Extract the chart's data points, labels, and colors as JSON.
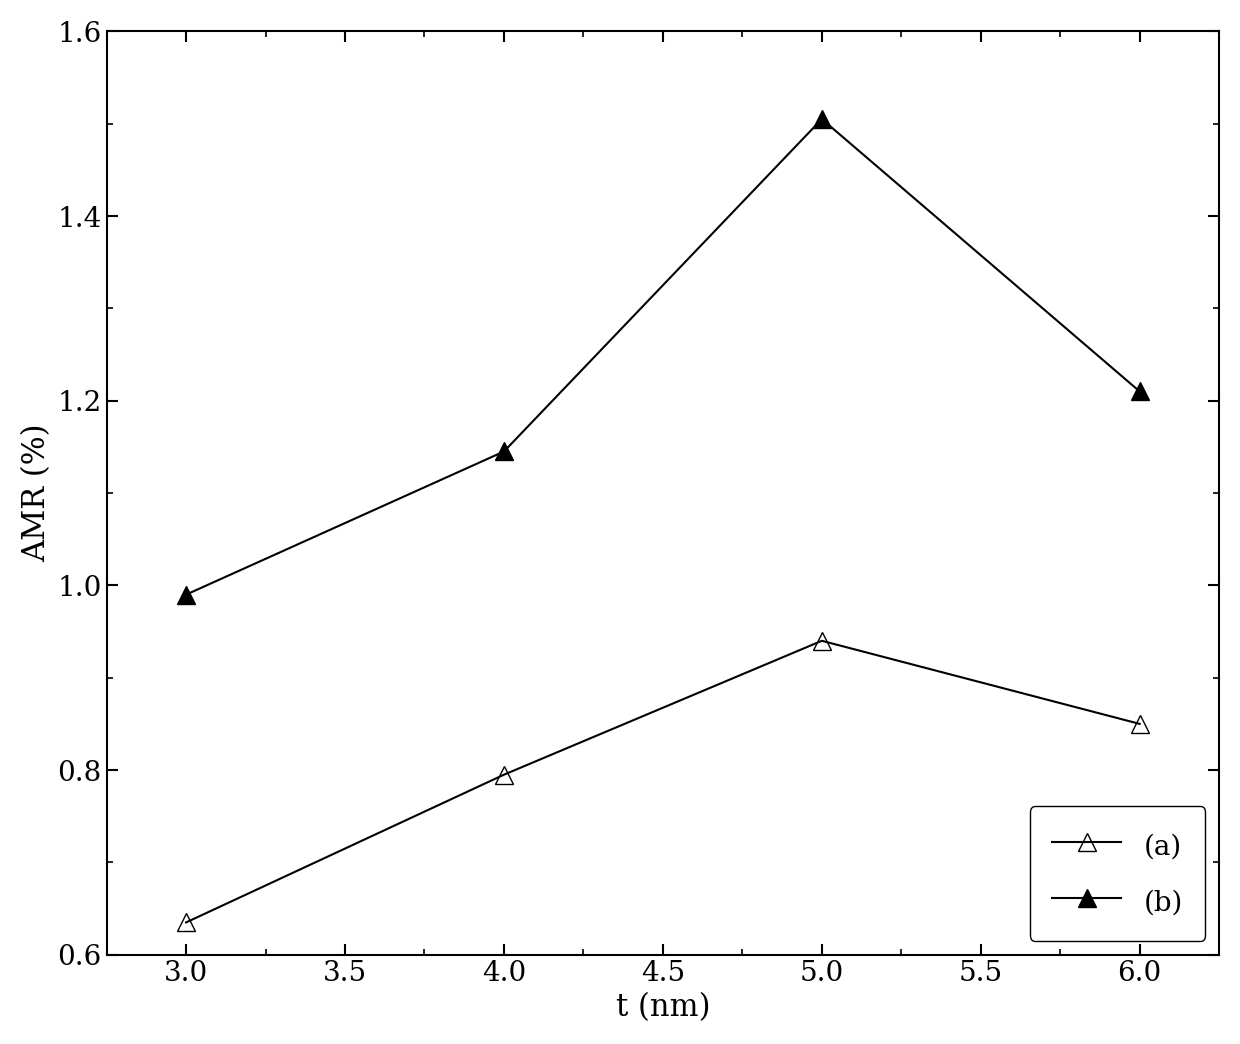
{
  "series_a": {
    "x": [
      3.0,
      4.0,
      5.0,
      6.0
    ],
    "y": [
      0.635,
      0.795,
      0.94,
      0.85
    ],
    "label": "(a)",
    "marker": "^",
    "color": "black",
    "fillstyle": "none",
    "markersize": 13,
    "linewidth": 1.5
  },
  "series_b": {
    "x": [
      3.0,
      4.0,
      5.0,
      6.0
    ],
    "y": [
      0.99,
      1.145,
      1.505,
      1.21
    ],
    "label": "(b)",
    "marker": "^",
    "color": "black",
    "fillstyle": "full",
    "markersize": 13,
    "linewidth": 1.5
  },
  "xlabel": "t (nm)",
  "ylabel": "AMR (%)",
  "xlim": [
    2.75,
    6.25
  ],
  "ylim": [
    0.6,
    1.6
  ],
  "xticks": [
    3.0,
    3.5,
    4.0,
    4.5,
    5.0,
    5.5,
    6.0
  ],
  "yticks": [
    0.6,
    0.8,
    1.0,
    1.2,
    1.4,
    1.6
  ],
  "xlabel_fontsize": 22,
  "ylabel_fontsize": 22,
  "tick_fontsize": 20,
  "legend_fontsize": 20,
  "background_color": "#ffffff"
}
